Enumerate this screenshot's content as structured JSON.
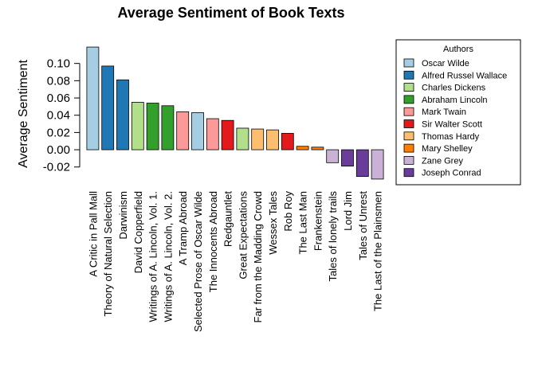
{
  "chart_data": {
    "type": "bar",
    "title": "Average Sentiment of Book Texts",
    "y_label": "Average Sentiment",
    "categories": [
      "A Critic in Pall Mall",
      "Theory of Natural Selection",
      "Darwinism",
      "David Copperfield",
      "Writings of A. Lincoln, Vol. 1.",
      "Writings of A. Lincoln, Vol. 2.",
      "A Tramp Abroad",
      "Selected Prose of Oscar Wilde",
      "The Innocents Abroad",
      "Redgauntlet",
      "Great Expectations",
      "Far from the Madding Crowd",
      "Wessex Tales",
      "Rob Roy",
      "The Last Man",
      "Frankenstein",
      "Tales of lonely trails",
      "Lord Jim",
      "Tales of Unrest",
      "The Last of the Plainsmen"
    ],
    "values": [
      0.119,
      0.097,
      0.081,
      0.055,
      0.054,
      0.051,
      0.044,
      0.043,
      0.036,
      0.034,
      0.025,
      0.024,
      0.023,
      0.019,
      0.004,
      0.003,
      -0.015,
      -0.019,
      -0.031,
      -0.034
    ],
    "colors": [
      "#a6cee3",
      "#1f78b4",
      "#1f78b4",
      "#b2df8a",
      "#33a02c",
      "#33a02c",
      "#fb9a99",
      "#a6cee3",
      "#fb9a99",
      "#e31a1c",
      "#b2df8a",
      "#fdbf6f",
      "#fdbf6f",
      "#e31a1c",
      "#ff7f00",
      "#ff7f00",
      "#cab2d6",
      "#6a3d9a",
      "#6a3d9a",
      "#cab2d6"
    ],
    "ylim": [
      -0.035,
      0.12
    ],
    "yticks": [
      -0.02,
      {
        "value": 0,
        "label": "0.00"
      },
      0.02,
      0.04,
      0.06,
      0.08,
      {
        "value": 0.1,
        "label": "0.10"
      }
    ],
    "legend": {
      "title": "Authors",
      "entries": [
        {
          "name": "Oscar Wilde",
          "color": "#a6cee3"
        },
        {
          "name": "Alfred Russel Wallace",
          "color": "#1f78b4"
        },
        {
          "name": "Charles Dickens",
          "color": "#b2df8a"
        },
        {
          "name": "Abraham Lincoln",
          "color": "#33a02c"
        },
        {
          "name": "Mark Twain",
          "color": "#fb9a99"
        },
        {
          "name": "Sir Walter Scott",
          "color": "#e31a1c"
        },
        {
          "name": "Thomas Hardy",
          "color": "#fdbf6f"
        },
        {
          "name": "Mary Shelley",
          "color": "#ff7f00"
        },
        {
          "name": "Zane Grey",
          "color": "#cab2d6"
        },
        {
          "name": "Joseph Conrad",
          "color": "#6a3d9a"
        }
      ]
    }
  }
}
